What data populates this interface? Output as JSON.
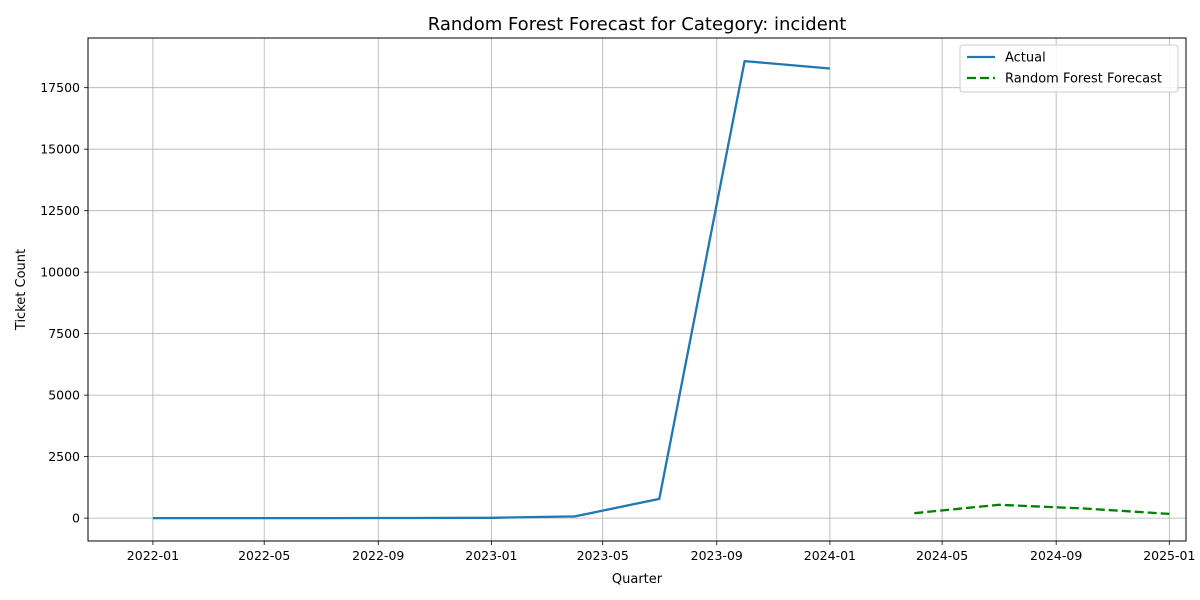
{
  "chart_data": {
    "type": "line",
    "title": "Random Forest Forecast for Category: incident",
    "xlabel": "Quarter",
    "ylabel": "Ticket Count",
    "x_tick_labels": [
      "2022-01",
      "2022-05",
      "2022-09",
      "2023-01",
      "2023-05",
      "2023-09",
      "2024-01",
      "2024-05",
      "2024-09",
      "2025-01"
    ],
    "y_ticks": [
      0,
      2500,
      5000,
      7500,
      10000,
      12500,
      15000,
      17500
    ],
    "y_tick_labels": [
      "0",
      "2500",
      "5000",
      "7500",
      "10000",
      "12500",
      "15000",
      "17500"
    ],
    "xlim": [
      "2021-10-23",
      "2025-01-19"
    ],
    "ylim": [
      -930,
      19520
    ],
    "grid": true,
    "legend_position": "top-right",
    "series": [
      {
        "name": "Actual",
        "color": "#1f77b4",
        "style": "solid",
        "x": [
          "2022-01-01",
          "2022-04-01",
          "2022-07-01",
          "2022-10-01",
          "2023-01-01",
          "2023-04-01",
          "2023-07-01",
          "2023-10-01",
          "2024-01-01"
        ],
        "y": [
          0,
          0,
          2,
          5,
          15,
          70,
          780,
          18580,
          18280
        ]
      },
      {
        "name": "Random Forest Forecast",
        "color": "#008000",
        "style": "dashed",
        "x": [
          "2024-04-01",
          "2024-07-01",
          "2024-10-01",
          "2025-01-01"
        ],
        "y": [
          200,
          540,
          390,
          170
        ]
      }
    ]
  }
}
